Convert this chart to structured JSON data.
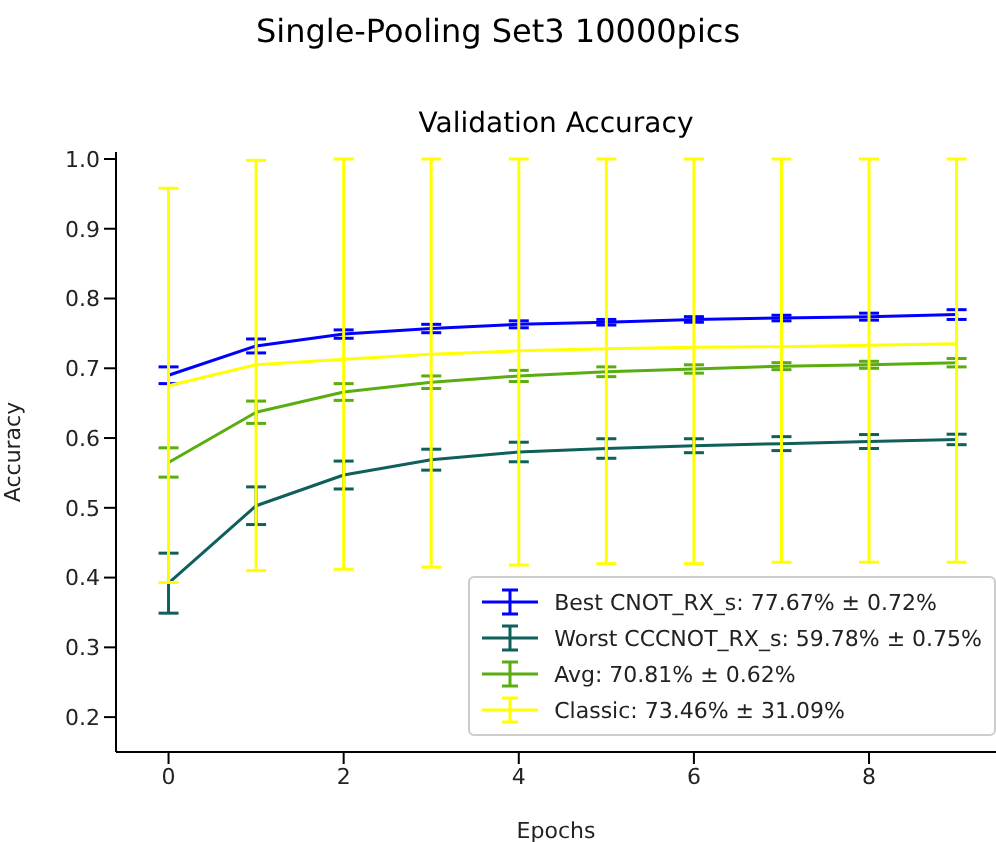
{
  "chart_data": {
    "type": "line",
    "title": "Single-Pooling Set3 10000pics",
    "subtitle": "Validation Accuracy",
    "xlabel": "Epochs",
    "ylabel": "Accuracy",
    "x": [
      0,
      1,
      2,
      3,
      4,
      5,
      6,
      7,
      8,
      9
    ],
    "series": [
      {
        "name": "Best CNOT_RX_s: 77.67% ± 0.72%",
        "color": "#0000ff",
        "values": [
          0.69,
          0.732,
          0.749,
          0.757,
          0.763,
          0.766,
          0.77,
          0.772,
          0.774,
          0.777
        ],
        "errors": [
          0.012,
          0.01,
          0.006,
          0.006,
          0.005,
          0.004,
          0.004,
          0.004,
          0.005,
          0.007
        ]
      },
      {
        "name": "Worst CCCNOT_RX_s: 59.78% ± 0.75%",
        "color": "#0f5f5a",
        "values": [
          0.392,
          0.503,
          0.547,
          0.569,
          0.58,
          0.585,
          0.589,
          0.592,
          0.595,
          0.598
        ],
        "errors": [
          0.043,
          0.027,
          0.02,
          0.015,
          0.014,
          0.014,
          0.01,
          0.01,
          0.01,
          0.0075
        ]
      },
      {
        "name": "Avg: 70.81% ± 0.62%",
        "color": "#5aad10",
        "values": [
          0.565,
          0.637,
          0.666,
          0.68,
          0.689,
          0.695,
          0.699,
          0.703,
          0.705,
          0.708
        ],
        "errors": [
          0.021,
          0.016,
          0.012,
          0.009,
          0.008,
          0.007,
          0.006,
          0.005,
          0.005,
          0.006
        ]
      },
      {
        "name": "Classic: 73.46% ± 31.09%",
        "color": "#ffff00",
        "values": [
          0.675,
          0.705,
          0.713,
          0.72,
          0.725,
          0.728,
          0.73,
          0.731,
          0.733,
          0.735
        ],
        "errors": [
          [
            0.393,
            0.958
          ],
          [
            0.41,
            0.998
          ],
          [
            0.412,
            1.0
          ],
          [
            0.415,
            1.0
          ],
          [
            0.418,
            1.0
          ],
          [
            0.42,
            1.0
          ],
          [
            0.42,
            1.0
          ],
          [
            0.422,
            1.0
          ],
          [
            0.422,
            1.0
          ],
          [
            0.422,
            1.0
          ]
        ]
      }
    ],
    "xlim": [
      -0.6,
      9.45
    ],
    "xticks": [
      0,
      2,
      4,
      6,
      8
    ],
    "ylim": [
      0.15,
      1.01
    ],
    "yticks": [
      0.2,
      0.3,
      0.4,
      0.5,
      0.6,
      0.7,
      0.8,
      0.9,
      {
        "value": 1,
        "label": "1.0"
      }
    ],
    "grid": false,
    "legend": "bottom right",
    "marker": "none",
    "line_style": "solid"
  }
}
